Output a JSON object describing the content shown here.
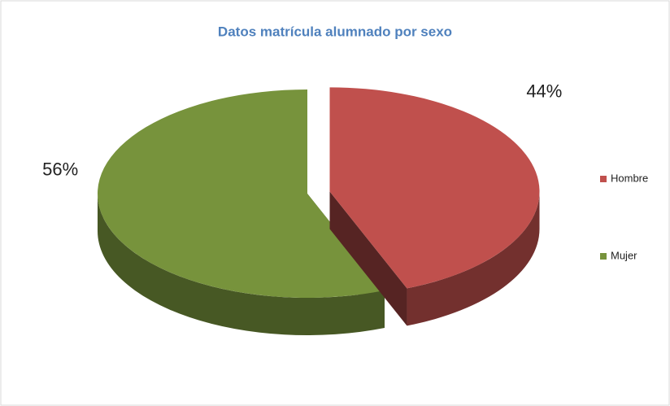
{
  "chart_data": {
    "type": "pie",
    "title": "Datos matrícula alumnado por sexo",
    "categories": [
      "Hombre",
      "Mujer"
    ],
    "values": [
      44,
      56
    ],
    "value_labels": [
      "44%",
      "56%"
    ],
    "colors": [
      "#c0504d",
      "#77933c"
    ],
    "legend": "right",
    "explode": [
      true,
      false
    ]
  }
}
